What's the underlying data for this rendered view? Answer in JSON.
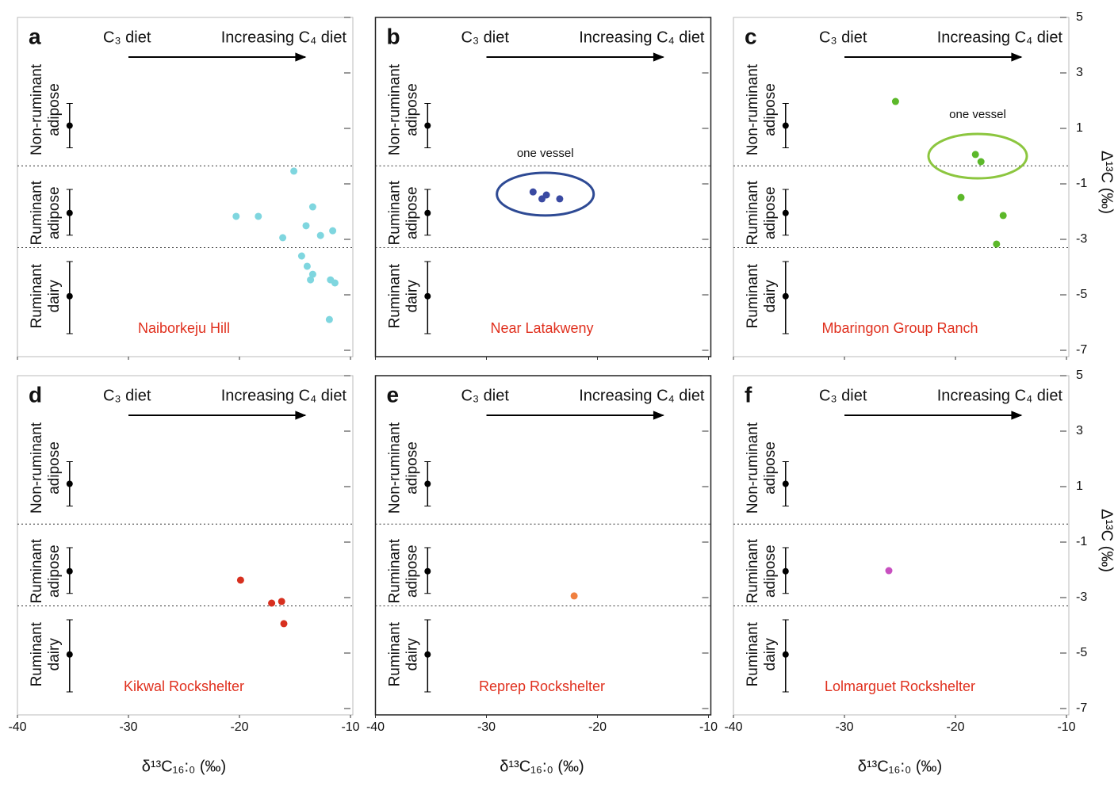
{
  "chart_data": [
    {
      "type": "scatter",
      "panel": "a",
      "site": "Naiborkeju Hill",
      "left_label": "C₃ diet",
      "right_label": "Increasing C₄ diet",
      "xlim": [
        -40,
        -10
      ],
      "ylim": [
        -7,
        5
      ],
      "xticks": [
        -40,
        -30,
        -20,
        -10
      ],
      "yticks": [
        5,
        3,
        1,
        -1,
        -3,
        -5,
        -7
      ],
      "dividers": [
        -0.35,
        -3.3
      ],
      "references": [
        {
          "label": [
            "Non-ruminant",
            "adipose"
          ],
          "x": -35.3,
          "y": 1.1,
          "low": 0.3,
          "high": 1.9
        },
        {
          "label": [
            "Ruminant",
            "adipose"
          ],
          "x": -35.3,
          "y": -2.05,
          "low": -2.85,
          "high": -1.2
        },
        {
          "label": [
            "Ruminant",
            "dairy"
          ],
          "x": -35.3,
          "y": -5.05,
          "low": -6.4,
          "high": -3.8
        }
      ],
      "series": [
        {
          "color": "#7fd6df",
          "x": [
            -15.1,
            -20.3,
            -18.3,
            -13.4,
            -14.0,
            -16.1,
            -12.7,
            -11.6,
            -14.4,
            -13.9,
            -13.4,
            -13.6,
            -11.8,
            -11.4,
            -11.9
          ],
          "values": [
            -0.54,
            -2.17,
            -2.17,
            -1.83,
            -2.51,
            -2.94,
            -2.86,
            -2.69,
            -3.6,
            -3.97,
            -4.26,
            -4.46,
            -4.46,
            -4.57,
            -5.89
          ]
        }
      ]
    },
    {
      "type": "scatter",
      "panel": "b",
      "site": "Near Latakweny",
      "left_label": "C₃ diet",
      "right_label": "Increasing C₄ diet",
      "xlim": [
        -40,
        -10
      ],
      "ylim": [
        -7,
        5
      ],
      "xticks": [
        -40,
        -30,
        -20,
        -10
      ],
      "yticks": [
        5,
        3,
        1,
        -1,
        -3,
        -5,
        -7
      ],
      "dividers": [
        -0.35,
        -3.3
      ],
      "references": [
        {
          "label": [
            "Non-ruminant",
            "adipose"
          ],
          "x": -35.3,
          "y": 1.1,
          "low": 0.3,
          "high": 1.9
        },
        {
          "label": [
            "Ruminant",
            "adipose"
          ],
          "x": -35.3,
          "y": -2.05,
          "low": -2.85,
          "high": -1.2
        },
        {
          "label": [
            "Ruminant",
            "dairy"
          ],
          "x": -35.3,
          "y": -5.05,
          "low": -6.4,
          "high": -3.8
        }
      ],
      "series": [
        {
          "color": "#3a4aa2",
          "x": [
            -25.8,
            -24.6,
            -25.0,
            -23.4
          ],
          "values": [
            -1.29,
            -1.4,
            -1.54,
            -1.54
          ]
        }
      ],
      "annotation": {
        "text": "one vessel",
        "x": -24.7,
        "y": -1.37,
        "rx": 4.36,
        "ry": 0.77,
        "color": "#2e4a94"
      }
    },
    {
      "type": "scatter",
      "panel": "c",
      "site": "Mbaringon Group Ranch",
      "left_label": "C₃ diet",
      "right_label": "Increasing C₄ diet",
      "xlim": [
        -40,
        -10
      ],
      "ylim": [
        -7,
        5
      ],
      "xticks": [
        -40,
        -30,
        -20,
        -10
      ],
      "yticks": [
        5,
        3,
        1,
        -1,
        -3,
        -5,
        -7
      ],
      "dividers": [
        -0.35,
        -3.3
      ],
      "ylabel": "Δ¹³C (‰)",
      "references": [
        {
          "label": [
            "Non-ruminant",
            "adipose"
          ],
          "x": -35.3,
          "y": 1.1,
          "low": 0.3,
          "high": 1.9
        },
        {
          "label": [
            "Ruminant",
            "adipose"
          ],
          "x": -35.3,
          "y": -2.05,
          "low": -2.85,
          "high": -1.2
        },
        {
          "label": [
            "Ruminant",
            "dairy"
          ],
          "x": -35.3,
          "y": -5.05,
          "low": -6.4,
          "high": -3.8
        }
      ],
      "series": [
        {
          "color": "#5cb82a",
          "x": [
            -25.4,
            -18.2,
            -17.7,
            -19.5,
            -15.7,
            -16.3
          ],
          "values": [
            1.97,
            0.06,
            -0.2,
            -1.49,
            -2.14,
            -3.17
          ]
        }
      ],
      "annotation": {
        "text": "one vessel",
        "x": -18.0,
        "y": 0.0,
        "rx": 4.43,
        "ry": 0.8,
        "color": "#8cc63f"
      }
    },
    {
      "type": "scatter",
      "panel": "d",
      "site": "Kikwal Rockshelter",
      "left_label": "C₃ diet",
      "right_label": "Increasing C₄ diet",
      "xlim": [
        -40,
        -10
      ],
      "ylim": [
        -7,
        5
      ],
      "xticks": [
        -40,
        -30,
        -20,
        -10
      ],
      "yticks": [
        5,
        3,
        1,
        -1,
        -3,
        -5,
        -7
      ],
      "dividers": [
        -0.35,
        -3.3
      ],
      "xlabel": "δ¹³C₁₆:₀ (‰)",
      "references": [
        {
          "label": [
            "Non-ruminant",
            "adipose"
          ],
          "x": -35.3,
          "y": 1.1,
          "low": 0.3,
          "high": 1.9
        },
        {
          "label": [
            "Ruminant",
            "adipose"
          ],
          "x": -35.3,
          "y": -2.05,
          "low": -2.85,
          "high": -1.2
        },
        {
          "label": [
            "Ruminant",
            "dairy"
          ],
          "x": -35.3,
          "y": -5.05,
          "low": -6.4,
          "high": -3.8
        }
      ],
      "series": [
        {
          "color": "#d7301f",
          "x": [
            -19.9,
            -17.1,
            -16.2,
            -16.0
          ],
          "values": [
            -2.37,
            -3.2,
            -3.14,
            -3.94
          ]
        }
      ]
    },
    {
      "type": "scatter",
      "panel": "e",
      "site": "Reprep Rockshelter",
      "left_label": "C₃ diet",
      "right_label": "Increasing C₄ diet",
      "xlim": [
        -40,
        -10
      ],
      "ylim": [
        -7,
        5
      ],
      "xticks": [
        -40,
        -30,
        -20,
        -10
      ],
      "yticks": [
        5,
        3,
        1,
        -1,
        -3,
        -5,
        -7
      ],
      "dividers": [
        -0.35,
        -3.3
      ],
      "xlabel": "δ¹³C₁₆:₀ (‰)",
      "references": [
        {
          "label": [
            "Non-ruminant",
            "adipose"
          ],
          "x": -35.3,
          "y": 1.1,
          "low": 0.3,
          "high": 1.9
        },
        {
          "label": [
            "Ruminant",
            "adipose"
          ],
          "x": -35.3,
          "y": -2.05,
          "low": -2.85,
          "high": -1.2
        },
        {
          "label": [
            "Ruminant",
            "dairy"
          ],
          "x": -35.3,
          "y": -5.05,
          "low": -6.4,
          "high": -3.8
        }
      ],
      "series": [
        {
          "color": "#f08040",
          "x": [
            -22.1
          ],
          "values": [
            -2.94
          ]
        }
      ]
    },
    {
      "type": "scatter",
      "panel": "f",
      "site": "Lolmarguet Rockshelter",
      "left_label": "C₃ diet",
      "right_label": "Increasing C₄ diet",
      "xlim": [
        -40,
        -10
      ],
      "ylim": [
        -7,
        5
      ],
      "xticks": [
        -40,
        -30,
        -20,
        -10
      ],
      "yticks": [
        5,
        3,
        1,
        -1,
        -3,
        -5,
        -7
      ],
      "dividers": [
        -0.35,
        -3.3
      ],
      "xlabel": "δ¹³C₁₆:₀ (‰)",
      "ylabel": "Δ¹³C (‰)",
      "references": [
        {
          "label": [
            "Non-ruminant",
            "adipose"
          ],
          "x": -35.3,
          "y": 1.1,
          "low": 0.3,
          "high": 1.9
        },
        {
          "label": [
            "Ruminant",
            "adipose"
          ],
          "x": -35.3,
          "y": -2.05,
          "low": -2.85,
          "high": -1.2
        },
        {
          "label": [
            "Ruminant",
            "dairy"
          ],
          "x": -35.3,
          "y": -5.05,
          "low": -6.4,
          "high": -3.8
        }
      ],
      "series": [
        {
          "color": "#c850c0",
          "x": [
            -26.0
          ],
          "values": [
            -2.03
          ]
        }
      ]
    }
  ]
}
